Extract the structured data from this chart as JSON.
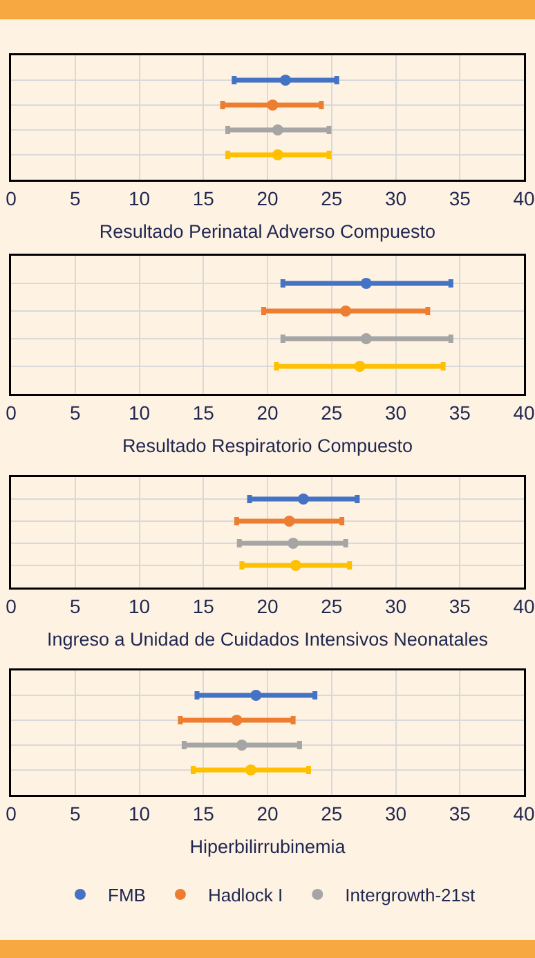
{
  "chart_data": [
    {
      "type": "scatter",
      "orientation": "horizontal",
      "xlabel": "Resultado Perinatal Adverso Compuesto",
      "categories": [
        null,
        null,
        null,
        null
      ],
      "xlim": [
        0,
        40
      ],
      "xticks": [
        0,
        5,
        10,
        15,
        20,
        25,
        30,
        35,
        40
      ],
      "grid": true,
      "marker": "circle",
      "tick_labels": "x",
      "legend": false,
      "series": [
        {
          "color": "#4472c4",
          "values": [
            21.4,
            null,
            null,
            null
          ],
          "errors": [
            [
              17.4,
              25.4
            ],
            null,
            null,
            null
          ]
        },
        {
          "color": "#ed7d31",
          "values": [
            null,
            20.4,
            null,
            null
          ],
          "errors": [
            null,
            [
              16.5,
              24.2
            ],
            null,
            null
          ]
        },
        {
          "color": "#a5a5a5",
          "values": [
            null,
            null,
            20.8,
            null
          ],
          "errors": [
            null,
            null,
            [
              16.9,
              24.8
            ],
            null
          ]
        },
        {
          "color": "#ffc000",
          "values": [
            null,
            null,
            null,
            20.8
          ],
          "errors": [
            null,
            null,
            null,
            [
              16.9,
              24.8
            ]
          ]
        }
      ]
    },
    {
      "type": "scatter",
      "orientation": "horizontal",
      "xlabel": "Resultado Respiratorio Compuesto",
      "categories": [
        null,
        null,
        null,
        null
      ],
      "xlim": [
        0,
        40
      ],
      "xticks": [
        0,
        5,
        10,
        15,
        20,
        25,
        30,
        35,
        40
      ],
      "grid": true,
      "marker": "circle",
      "tick_labels": "x",
      "legend": false,
      "series": [
        {
          "color": "#4472c4",
          "values": [
            27.7,
            null,
            null,
            null
          ],
          "errors": [
            [
              21.2,
              34.3
            ],
            null,
            null,
            null
          ]
        },
        {
          "color": "#ed7d31",
          "values": [
            null,
            26.1,
            null,
            null
          ],
          "errors": [
            null,
            [
              19.7,
              32.5
            ],
            null,
            null
          ]
        },
        {
          "color": "#a5a5a5",
          "values": [
            null,
            null,
            27.7,
            null
          ],
          "errors": [
            null,
            null,
            [
              21.2,
              34.3
            ],
            null
          ]
        },
        {
          "color": "#ffc000",
          "values": [
            null,
            null,
            null,
            27.2
          ],
          "errors": [
            null,
            null,
            null,
            [
              20.7,
              33.7
            ]
          ]
        }
      ]
    },
    {
      "type": "scatter",
      "orientation": "horizontal",
      "xlabel": "Ingreso a Unidad de Cuidados Intensivos Neonatales",
      "categories": [
        null,
        null,
        null,
        null
      ],
      "xlim": [
        0,
        40
      ],
      "xticks": [
        0,
        5,
        10,
        15,
        20,
        25,
        30,
        35,
        40
      ],
      "grid": true,
      "marker": "circle",
      "tick_labels": "x",
      "legend": false,
      "series": [
        {
          "color": "#4472c4",
          "values": [
            22.8,
            null,
            null,
            null
          ],
          "errors": [
            [
              18.6,
              27.0
            ],
            null,
            null,
            null
          ]
        },
        {
          "color": "#ed7d31",
          "values": [
            null,
            21.7,
            null,
            null
          ],
          "errors": [
            null,
            [
              17.6,
              25.8
            ],
            null,
            null
          ]
        },
        {
          "color": "#a5a5a5",
          "values": [
            null,
            null,
            22.0,
            null
          ],
          "errors": [
            null,
            null,
            [
              17.8,
              26.1
            ],
            null
          ]
        },
        {
          "color": "#ffc000",
          "values": [
            null,
            null,
            null,
            22.2
          ],
          "errors": [
            null,
            null,
            null,
            [
              18.0,
              26.4
            ]
          ]
        }
      ]
    },
    {
      "type": "scatter",
      "orientation": "horizontal",
      "xlabel": "Hiperbilirrubinemia",
      "categories": [
        null,
        null,
        null,
        null
      ],
      "xlim": [
        0,
        40
      ],
      "xticks": [
        0,
        5,
        10,
        15,
        20,
        25,
        30,
        35,
        40
      ],
      "grid": true,
      "marker": "circle",
      "tick_labels": "x",
      "legend": "bottom",
      "series": [
        {
          "name": "FMB",
          "color": "#4472c4",
          "values": [
            19.1,
            null,
            null,
            null
          ],
          "errors": [
            [
              14.5,
              23.7
            ],
            null,
            null,
            null
          ]
        },
        {
          "name": "Hadlock I",
          "color": "#ed7d31",
          "values": [
            null,
            17.6,
            null,
            null
          ],
          "errors": [
            null,
            [
              13.2,
              22.0
            ],
            null,
            null
          ]
        },
        {
          "name": "Intergrowth-21st",
          "color": "#a5a5a5",
          "values": [
            null,
            null,
            18.0,
            null
          ],
          "errors": [
            null,
            null,
            [
              13.5,
              22.5
            ],
            null
          ]
        },
        {
          "color": "#ffc000",
          "values": [
            null,
            null,
            null,
            18.7
          ],
          "errors": [
            null,
            null,
            null,
            [
              14.2,
              23.2
            ]
          ]
        }
      ]
    }
  ]
}
